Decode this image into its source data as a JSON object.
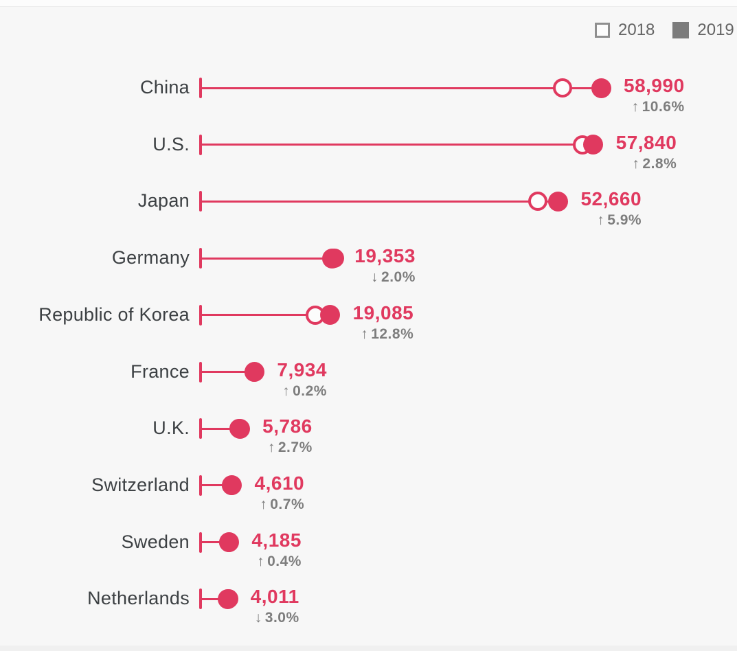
{
  "page": {
    "background": "#f7f7f7",
    "accent_color": "#e0395f",
    "label_color": "#3c4043",
    "change_color": "#7d7d7d"
  },
  "legend": {
    "items": [
      {
        "label": "2018",
        "swatch": "outline"
      },
      {
        "label": "2019",
        "swatch": "filled"
      }
    ]
  },
  "chart_data": {
    "type": "dumbbell",
    "title": "",
    "xlabel": "",
    "ylabel": "",
    "grid": false,
    "legend_position": "top-right",
    "categories": [
      "China",
      "U.S.",
      "Japan",
      "Germany",
      "Republic of Korea",
      "France",
      "U.K.",
      "Switzerland",
      "Sweden",
      "Netherlands"
    ],
    "series": [
      {
        "name": "2018",
        "marker": "open-circle",
        "values": [
          53336,
          56265,
          49726,
          19748,
          16919,
          7918,
          5634,
          4578,
          4168,
          4135
        ]
      },
      {
        "name": "2019",
        "marker": "filled-circle",
        "values": [
          58990,
          57840,
          52660,
          19353,
          19085,
          7934,
          5786,
          4610,
          4185,
          4011
        ]
      }
    ],
    "x_range": [
      0,
      58990
    ],
    "rows": [
      {
        "country": "China",
        "value_label": "58,990",
        "direction": "up",
        "change_label": "10.6%"
      },
      {
        "country": "U.S.",
        "value_label": "57,840",
        "direction": "up",
        "change_label": "2.8%"
      },
      {
        "country": "Japan",
        "value_label": "52,660",
        "direction": "up",
        "change_label": "5.9%"
      },
      {
        "country": "Germany",
        "value_label": "19,353",
        "direction": "down",
        "change_label": "2.0%"
      },
      {
        "country": "Republic of Korea",
        "value_label": "19,085",
        "direction": "up",
        "change_label": "12.8%"
      },
      {
        "country": "France",
        "value_label": "7,934",
        "direction": "up",
        "change_label": "0.2%"
      },
      {
        "country": "U.K.",
        "value_label": "5,786",
        "direction": "up",
        "change_label": "2.7%"
      },
      {
        "country": "Switzerland",
        "value_label": "4,610",
        "direction": "up",
        "change_label": "0.7%"
      },
      {
        "country": "Sweden",
        "value_label": "4,185",
        "direction": "up",
        "change_label": "0.4%"
      },
      {
        "country": "Netherlands",
        "value_label": "4,011",
        "direction": "down",
        "change_label": "3.0%"
      }
    ],
    "icons": {
      "up_arrow": "↑",
      "down_arrow": "↓"
    }
  }
}
